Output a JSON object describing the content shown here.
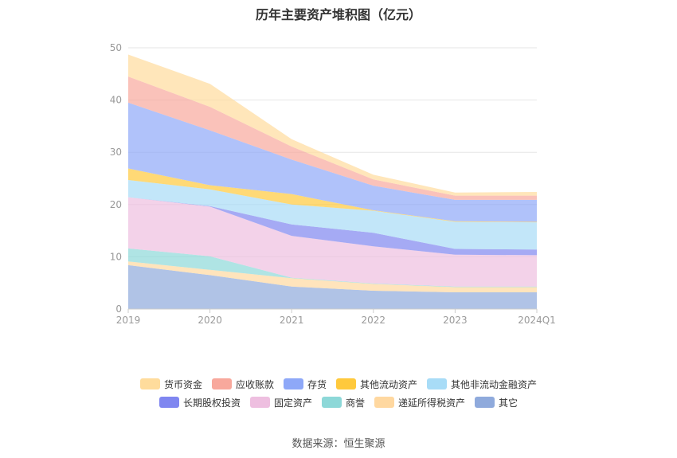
{
  "title": "历年主要资产堆积图（亿元）",
  "source": "数据来源：恒生聚源",
  "chart_data": {
    "type": "area",
    "stacked": true,
    "categories": [
      "2019",
      "2020",
      "2021",
      "2022",
      "2023",
      "2024Q1"
    ],
    "ylim": [
      0,
      50
    ],
    "yticks": [
      0,
      10,
      20,
      30,
      40,
      50
    ],
    "grid": true,
    "legend_position": "bottom",
    "series": [
      {
        "name": "其它",
        "color": "#8faadc",
        "values": [
          8.4,
          6.5,
          4.3,
          3.5,
          3.2,
          3.2
        ]
      },
      {
        "name": "递延所得税资产",
        "color": "#ffd8a0",
        "values": [
          0.7,
          1.0,
          1.6,
          1.3,
          1.0,
          1.0
        ]
      },
      {
        "name": "商誉",
        "color": "#8dd8d8",
        "values": [
          2.5,
          2.6,
          0.1,
          0.1,
          0.1,
          0.1
        ]
      },
      {
        "name": "固定资产",
        "color": "#eebfe0",
        "values": [
          9.8,
          9.5,
          8.0,
          7.1,
          6.1,
          6.0
        ]
      },
      {
        "name": "长期股权投资",
        "color": "#7f86f0",
        "values": [
          0.0,
          0.1,
          2.2,
          2.6,
          1.1,
          1.1
        ]
      },
      {
        "name": "其他非流动金融资产",
        "color": "#a8dcf7",
        "values": [
          3.3,
          3.2,
          3.8,
          4.2,
          5.2,
          5.2
        ]
      },
      {
        "name": "其他流动资产",
        "color": "#ffc93c",
        "values": [
          2.2,
          0.8,
          2.0,
          0.1,
          0.1,
          0.1
        ]
      },
      {
        "name": "存货",
        "color": "#8ea8f8",
        "values": [
          12.6,
          10.5,
          6.6,
          4.7,
          4.1,
          4.2
        ]
      },
      {
        "name": "应收账款",
        "color": "#f8a89c",
        "values": [
          5.0,
          4.5,
          2.5,
          1.2,
          0.8,
          0.8
        ]
      },
      {
        "name": "货币资金",
        "color": "#ffdc9c",
        "values": [
          4.2,
          4.4,
          1.4,
          0.9,
          0.6,
          0.7
        ]
      }
    ],
    "legend_order": [
      "货币资金",
      "应收账款",
      "存货",
      "其他流动资产",
      "其他非流动金融资产",
      "长期股权投资",
      "固定资产",
      "商誉",
      "递延所得税资产",
      "其它"
    ]
  }
}
